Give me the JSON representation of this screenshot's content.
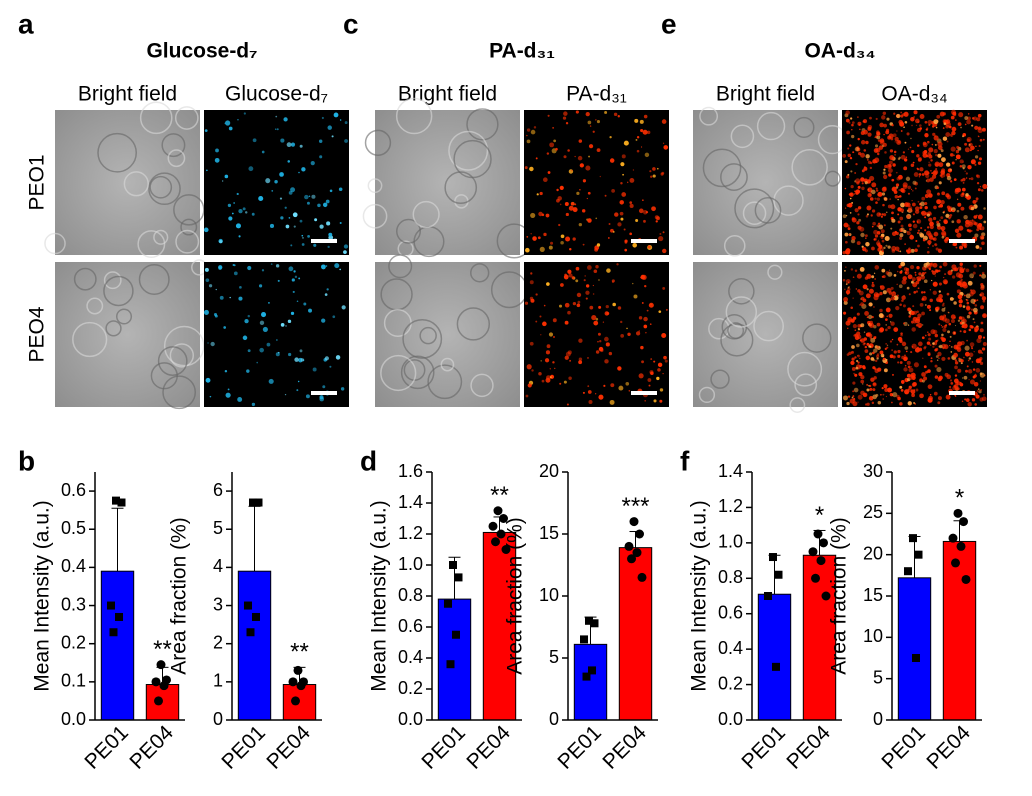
{
  "image_groups": [
    {
      "letter": "a",
      "title": "Glucose-d₇",
      "columns": [
        "Bright field",
        "Glucose-d₇"
      ],
      "rows": [
        "PEO1",
        "PEO4"
      ]
    },
    {
      "letter": "c",
      "title": "PA-d₃₁",
      "columns": [
        "Bright field",
        "PA-d₃₁"
      ]
    },
    {
      "letter": "e",
      "title": "OA-d₃₄",
      "columns": [
        "Bright field",
        "OA-d₃₄"
      ]
    }
  ],
  "chart_letters": [
    "b",
    "d",
    "f"
  ],
  "chart_data": [
    {
      "type": "bar",
      "ylabel": "Mean Intensity (a.u.)",
      "categories": [
        "PE01",
        "PE04"
      ],
      "colors": [
        "#0000ff",
        "#ff0000"
      ],
      "values": [
        0.39,
        0.093
      ],
      "errors": [
        0.165,
        0.045
      ],
      "points": [
        [
          0.575,
          0.57,
          0.3,
          0.27,
          0.23
        ],
        [
          0.145,
          0.105,
          0.1,
          0.09,
          0.05
        ]
      ],
      "significance": "**",
      "ylim": [
        0,
        0.65
      ],
      "yticks": [
        {
          "value": 0,
          "label": "0.0"
        },
        0.1,
        0.2,
        0.3,
        0.4,
        0.5,
        0.6
      ]
    },
    {
      "type": "bar",
      "ylabel": "Area fraction (%)",
      "categories": [
        "PE01",
        "PE04"
      ],
      "colors": [
        "#0000ff",
        "#ff0000"
      ],
      "values": [
        3.9,
        0.93
      ],
      "errors": [
        1.7,
        0.45
      ],
      "points": [
        [
          5.7,
          5.7,
          3.0,
          2.7,
          2.3
        ],
        [
          1.3,
          1.0,
          1.0,
          0.9,
          0.5
        ]
      ],
      "significance": "**",
      "ylim": [
        0,
        6.5
      ],
      "yticks": [
        0,
        1,
        2,
        3,
        4,
        5,
        6
      ]
    },
    {
      "type": "bar",
      "ylabel": "Mean Intensity (a.u.)",
      "categories": [
        "PE01",
        "PE04"
      ],
      "colors": [
        "#0000ff",
        "#ff0000"
      ],
      "values": [
        0.78,
        1.21
      ],
      "errors": [
        0.27,
        0.1
      ],
      "points": [
        [
          1.0,
          0.92,
          0.75,
          0.55,
          0.36
        ],
        [
          1.35,
          1.3,
          1.25,
          1.2,
          1.15,
          1.1
        ]
      ],
      "significance": "**",
      "ylim": [
        0,
        1.6
      ],
      "yticks": [
        {
          "value": 0,
          "label": "0.0"
        },
        0.2,
        0.4,
        0.6,
        0.8,
        {
          "value": 1,
          "label": "1.0"
        },
        1.2,
        1.4,
        1.6
      ]
    },
    {
      "type": "bar",
      "ylabel": "Area fraction (%)",
      "categories": [
        "PE01",
        "PE04"
      ],
      "colors": [
        "#0000ff",
        "#ff0000"
      ],
      "values": [
        6.1,
        13.9
      ],
      "errors": [
        2.2,
        1.3
      ],
      "points": [
        [
          8.0,
          7.8,
          6.5,
          4.0,
          3.5
        ],
        [
          16,
          15,
          14,
          13.5,
          13,
          11.5
        ]
      ],
      "significance": "***",
      "ylim": [
        0,
        20
      ],
      "yticks": [
        0,
        5,
        10,
        15,
        20
      ]
    },
    {
      "type": "bar",
      "ylabel": "Mean Intensity (a.u.)",
      "categories": [
        "PE01",
        "PE04"
      ],
      "colors": [
        "#0000ff",
        "#ff0000"
      ],
      "values": [
        0.71,
        0.93
      ],
      "errors": [
        0.22,
        0.14
      ],
      "points": [
        [
          0.92,
          0.82,
          0.7,
          0.3
        ],
        [
          1.05,
          1.0,
          0.95,
          0.9,
          0.8,
          0.7
        ]
      ],
      "significance": "*",
      "ylim": [
        0,
        1.4
      ],
      "yticks": [
        {
          "value": 0,
          "label": "0.0"
        },
        0.2,
        0.4,
        0.6,
        0.8,
        {
          "value": 1,
          "label": "1.0"
        },
        1.2,
        1.4
      ]
    },
    {
      "type": "bar",
      "ylabel": "Area fraction (%)",
      "categories": [
        "PE01",
        "PE04"
      ],
      "colors": [
        "#0000ff",
        "#ff0000"
      ],
      "values": [
        17.2,
        21.6
      ],
      "errors": [
        5,
        2.5
      ],
      "points": [
        [
          22,
          20,
          18,
          7.5
        ],
        [
          25,
          24,
          22,
          21,
          19,
          17
        ]
      ],
      "significance": "*",
      "ylim": [
        0,
        30
      ],
      "yticks": [
        0,
        5,
        10,
        15,
        20,
        25,
        30
      ]
    }
  ]
}
